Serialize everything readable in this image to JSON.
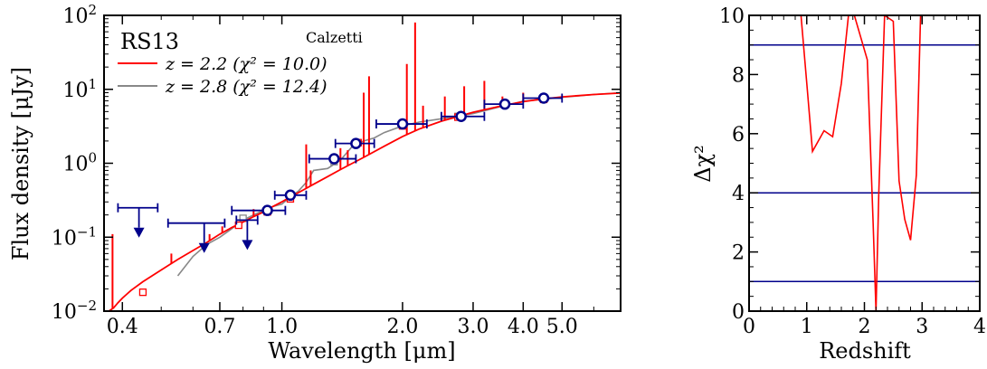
{
  "chart_data": [
    {
      "type": "line",
      "title": "RS13",
      "annotation": "Calzetti",
      "xlabel": "Wavelength [μm]",
      "ylabel": "Flux density [μJy]",
      "xscale": "log",
      "yscale": "log",
      "xlim": [
        0.36,
        7.0
      ],
      "ylim": [
        0.01,
        100
      ],
      "xticks": [
        {
          "value": 0.4,
          "label": "0.4"
        },
        {
          "value": 0.7,
          "label": "0.7"
        },
        {
          "value": 1.0,
          "label": "1.0"
        },
        {
          "value": 2.0,
          "label": "2.0"
        },
        {
          "value": 3.0,
          "label": "3.0"
        },
        {
          "value": 4.0,
          "label": "4.0"
        },
        {
          "value": 5.0,
          "label": "5.0"
        }
      ],
      "yticks": [
        {
          "value": 0.01,
          "base": "10",
          "exp": "−2"
        },
        {
          "value": 0.1,
          "base": "10",
          "exp": "−1"
        },
        {
          "value": 1,
          "base": "10",
          "exp": "0"
        },
        {
          "value": 10,
          "base": "10",
          "exp": "1"
        },
        {
          "value": 100,
          "base": "10",
          "exp": "2"
        }
      ],
      "legend_position": "top-left",
      "series": [
        {
          "name": "z = 2.2 (χ² = 10.0)",
          "color": "#ff0000",
          "x": [
            0.37,
            0.38,
            0.39,
            0.4,
            0.42,
            0.45,
            0.5,
            0.55,
            0.6,
            0.65,
            0.7,
            0.75,
            0.8,
            0.85,
            0.9,
            0.95,
            1.0,
            1.05,
            1.1,
            1.2,
            1.3,
            1.4,
            1.5,
            1.6,
            1.8,
            2.0,
            2.2,
            2.5,
            2.8,
            3.0,
            3.5,
            4.0,
            4.5,
            5.0,
            6.0,
            7.0
          ],
          "y": [
            0.01,
            0.011,
            0.013,
            0.015,
            0.019,
            0.025,
            0.036,
            0.05,
            0.066,
            0.085,
            0.11,
            0.135,
            0.16,
            0.19,
            0.22,
            0.26,
            0.3,
            0.35,
            0.4,
            0.52,
            0.66,
            0.82,
            1.0,
            1.2,
            1.7,
            2.3,
            2.9,
            3.7,
            4.4,
            4.9,
            5.9,
            6.8,
            7.4,
            7.9,
            8.5,
            8.9
          ],
          "lines": [
            {
              "x": 0.378,
              "y": 0.11
            },
            {
              "x": 0.53,
              "y": 0.06
            },
            {
              "x": 0.66,
              "y": 0.11
            },
            {
              "x": 0.71,
              "y": 0.14
            },
            {
              "x": 0.85,
              "y": 0.24
            },
            {
              "x": 1.15,
              "y": 1.8
            },
            {
              "x": 1.18,
              "y": 0.8
            },
            {
              "x": 1.4,
              "y": 1.6
            },
            {
              "x": 1.46,
              "y": 1.5
            },
            {
              "x": 1.6,
              "y": 9
            },
            {
              "x": 1.65,
              "y": 15
            },
            {
              "x": 2.05,
              "y": 22
            },
            {
              "x": 2.15,
              "y": 80
            },
            {
              "x": 2.25,
              "y": 6
            },
            {
              "x": 2.55,
              "y": 8
            },
            {
              "x": 2.85,
              "y": 11
            },
            {
              "x": 3.2,
              "y": 13
            },
            {
              "x": 3.55,
              "y": 8
            },
            {
              "x": 4.0,
              "y": 9
            }
          ],
          "markers": [
            {
              "x": 0.45,
              "y": 0.018
            },
            {
              "x": 0.78,
              "y": 0.145
            },
            {
              "x": 0.92,
              "y": 0.22
            },
            {
              "x": 1.05,
              "y": 0.33
            },
            {
              "x": 1.55,
              "y": 1.9
            },
            {
              "x": 2.0,
              "y": 3.2
            },
            {
              "x": 2.75,
              "y": 4.2
            },
            {
              "x": 3.6,
              "y": 6.2
            },
            {
              "x": 4.5,
              "y": 7.3
            }
          ]
        },
        {
          "name": "z = 2.8 (χ² = 12.4)",
          "color": "#888888",
          "x": [
            0.55,
            0.6,
            0.65,
            0.7,
            0.75,
            0.8,
            0.85,
            0.9,
            0.95,
            1.0,
            1.05,
            1.1,
            1.15,
            1.2,
            1.3,
            1.4,
            1.5,
            1.6,
            1.7,
            1.8,
            2.0,
            2.2,
            2.5,
            2.8,
            3.0,
            3.5,
            4.0,
            5.0,
            6.0,
            7.0
          ],
          "y": [
            0.03,
            0.055,
            0.08,
            0.1,
            0.13,
            0.17,
            0.2,
            0.23,
            0.26,
            0.28,
            0.35,
            0.42,
            0.55,
            0.8,
            0.85,
            1.1,
            1.7,
            2.0,
            2.2,
            2.6,
            3.2,
            3.6,
            4.0,
            4.4,
            4.7,
            5.8,
            6.9,
            7.8,
            8.5,
            9.0
          ],
          "markers": [
            {
              "x": 0.8,
              "y": 0.18
            },
            {
              "x": 1.35,
              "y": 1.05
            },
            {
              "x": 2.75,
              "y": 4.3
            }
          ]
        }
      ],
      "photometry": {
        "color": "#00008b",
        "detections": [
          {
            "x": 0.92,
            "y": 0.23,
            "x_lo": 0.75,
            "x_hi": 1.02
          },
          {
            "x": 1.05,
            "y": 0.37,
            "x_lo": 0.96,
            "x_hi": 1.15
          },
          {
            "x": 1.35,
            "y": 1.15,
            "x_lo": 1.17,
            "x_hi": 1.53
          },
          {
            "x": 1.53,
            "y": 1.85,
            "x_lo": 1.36,
            "x_hi": 1.7
          },
          {
            "x": 2.0,
            "y": 3.4,
            "x_lo": 1.72,
            "x_hi": 2.3
          },
          {
            "x": 2.8,
            "y": 4.3,
            "x_lo": 2.5,
            "x_hi": 3.2
          },
          {
            "x": 3.6,
            "y": 6.3,
            "x_lo": 3.2,
            "x_hi": 4.0
          },
          {
            "x": 4.5,
            "y": 7.6,
            "x_lo": 4.0,
            "x_hi": 5.0
          }
        ],
        "upper_limits": [
          {
            "x": 0.44,
            "y": 0.25,
            "x_lo": 0.39,
            "x_hi": 0.49
          },
          {
            "x": 0.64,
            "y": 0.155,
            "x_lo": 0.52,
            "x_hi": 0.72
          },
          {
            "x": 0.82,
            "y": 0.17,
            "x_lo": 0.77,
            "x_hi": 0.87
          }
        ]
      }
    },
    {
      "type": "line",
      "xlabel": "Redshift",
      "ylabel": "Δχ²",
      "xlim": [
        0,
        4
      ],
      "ylim": [
        0,
        10
      ],
      "xticks": [
        0,
        1,
        2,
        3,
        4
      ],
      "yticks": [
        0,
        2,
        4,
        6,
        8,
        10
      ],
      "hlines": [
        1,
        4,
        9
      ],
      "hline_color": "#00008b",
      "series": [
        {
          "color": "#ff0000",
          "x": [
            0.7,
            0.9,
            1.0,
            1.1,
            1.3,
            1.45,
            1.6,
            1.75,
            2.05,
            2.15,
            2.2,
            2.25,
            2.35,
            2.5,
            2.6,
            2.7,
            2.8,
            2.9,
            3.0
          ],
          "y": [
            12.0,
            10.0,
            7.7,
            5.4,
            6.1,
            5.9,
            7.7,
            10.5,
            8.5,
            3.0,
            0.0,
            4.0,
            10.0,
            9.8,
            4.4,
            3.1,
            2.4,
            4.6,
            12.0
          ]
        }
      ]
    }
  ]
}
